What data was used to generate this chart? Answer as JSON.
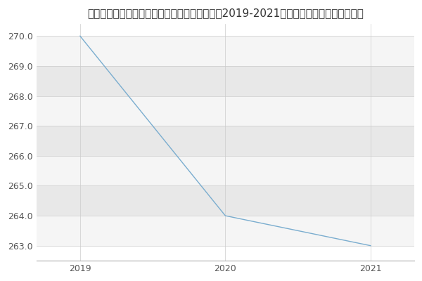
{
  "title": "太原科技大学计算机科学与技术学院软件工程（2019-2021历年复试）研究生录取分数线",
  "x": [
    2019,
    2020,
    2021
  ],
  "y": [
    270,
    264,
    263
  ],
  "line_color": "#7aadcf",
  "ylim": [
    262.5,
    270.4
  ],
  "yticks": [
    263.0,
    264.0,
    265.0,
    266.0,
    267.0,
    268.0,
    269.0,
    270.0
  ],
  "xticks": [
    2019,
    2020,
    2021
  ],
  "fig_bg_color": "#ffffff",
  "band_light": "#f5f5f5",
  "band_dark": "#e8e8e8",
  "title_fontsize": 11,
  "tick_fontsize": 9,
  "xlim": [
    2018.7,
    2021.3
  ]
}
